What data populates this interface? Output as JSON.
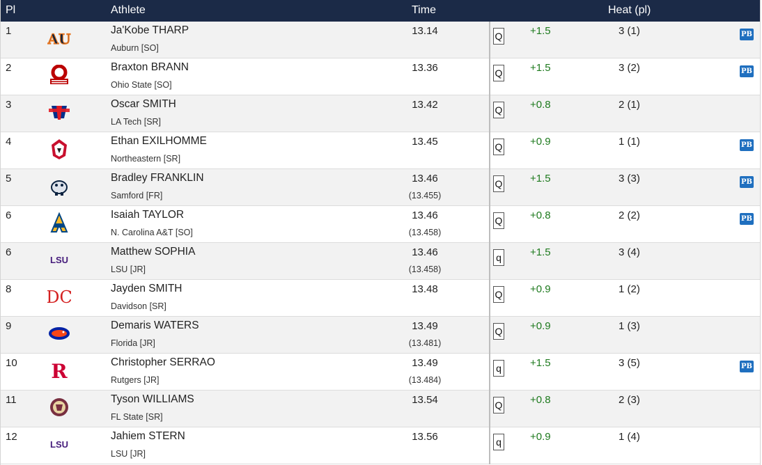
{
  "header": {
    "pl": "Pl",
    "athlete": "Athlete",
    "time": "Time",
    "heat": "Heat (pl)"
  },
  "rows": [
    {
      "pl": "1",
      "name": "Ja'Kobe THARP",
      "team": "Auburn [SO]",
      "time": "13.14",
      "precise": "",
      "qual": "Q",
      "wind": "+1.5",
      "heat": "3 (1)",
      "pb": "PB",
      "logo": "auburn-logo",
      "logo_text": "AU"
    },
    {
      "pl": "2",
      "name": "Braxton BRANN",
      "team": "Ohio State [SO]",
      "time": "13.36",
      "precise": "",
      "qual": "Q",
      "wind": "+1.5",
      "heat": "3 (2)",
      "pb": "PB",
      "logo": "ohio-state-logo",
      "logo_text": ""
    },
    {
      "pl": "3",
      "name": "Oscar SMITH",
      "team": "LA Tech [SR]",
      "time": "13.42",
      "precise": "",
      "qual": "Q",
      "wind": "+0.8",
      "heat": "2 (1)",
      "pb": "",
      "logo": "la-tech-logo",
      "logo_text": ""
    },
    {
      "pl": "4",
      "name": "Ethan EXILHOMME",
      "team": "Northeastern [SR]",
      "time": "13.45",
      "precise": "",
      "qual": "Q",
      "wind": "+0.9",
      "heat": "1 (1)",
      "pb": "PB",
      "logo": "northeastern-logo",
      "logo_text": ""
    },
    {
      "pl": "5",
      "name": "Bradley FRANKLIN",
      "team": "Samford [FR]",
      "time": "13.46",
      "precise": "(13.455)",
      "qual": "Q",
      "wind": "+1.5",
      "heat": "3 (3)",
      "pb": "PB",
      "logo": "samford-logo",
      "logo_text": ""
    },
    {
      "pl": "6",
      "name": "Isaiah TAYLOR",
      "team": "N. Carolina A&T [SO]",
      "time": "13.46",
      "precise": "(13.458)",
      "qual": "Q",
      "wind": "+0.8",
      "heat": "2 (2)",
      "pb": "PB",
      "logo": "nc-at-logo",
      "logo_text": ""
    },
    {
      "pl": "6",
      "name": "Matthew SOPHIA",
      "team": "LSU [JR]",
      "time": "13.46",
      "precise": "(13.458)",
      "qual": "q",
      "wind": "+1.5",
      "heat": "3 (4)",
      "pb": "",
      "logo": "lsu-logo",
      "logo_text": "LSU"
    },
    {
      "pl": "8",
      "name": "Jayden SMITH",
      "team": "Davidson [SR]",
      "time": "13.48",
      "precise": "",
      "qual": "Q",
      "wind": "+0.9",
      "heat": "1 (2)",
      "pb": "",
      "logo": "davidson-logo",
      "logo_text": "DC"
    },
    {
      "pl": "9",
      "name": "Demaris WATERS",
      "team": "Florida [JR]",
      "time": "13.49",
      "precise": "(13.481)",
      "qual": "Q",
      "wind": "+0.9",
      "heat": "1 (3)",
      "pb": "",
      "logo": "florida-logo",
      "logo_text": ""
    },
    {
      "pl": "10",
      "name": "Christopher SERRAO",
      "team": "Rutgers [JR]",
      "time": "13.49",
      "precise": "(13.484)",
      "qual": "q",
      "wind": "+1.5",
      "heat": "3 (5)",
      "pb": "PB",
      "logo": "rutgers-logo",
      "logo_text": "R"
    },
    {
      "pl": "11",
      "name": "Tyson WILLIAMS",
      "team": "FL State [SR]",
      "time": "13.54",
      "precise": "",
      "qual": "Q",
      "wind": "+0.8",
      "heat": "2 (3)",
      "pb": "",
      "logo": "fl-state-logo",
      "logo_text": ""
    },
    {
      "pl": "12",
      "name": "Jahiem STERN",
      "team": "LSU [JR]",
      "time": "13.56",
      "precise": "",
      "qual": "q",
      "wind": "+0.9",
      "heat": "1 (4)",
      "pb": "",
      "logo": "lsu-logo",
      "logo_text": "LSU"
    }
  ],
  "colors": {
    "header_bg": "#1b2a47",
    "wind": "#1e7a1e",
    "pb_badge": "#1f6fbf",
    "auburn_navy": "#0c2340",
    "auburn_orange": "#e87722",
    "ohio_red": "#bb0000",
    "latech_blue": "#002f8b",
    "latech_red": "#e31b23",
    "northeastern_red": "#c8102e",
    "samford_navy": "#0c2340",
    "ncat_blue": "#004684",
    "ncat_gold": "#fdb927",
    "lsu_purple": "#461d7c",
    "davidson_red": "#d42121",
    "florida_blue": "#0021a5",
    "florida_orange": "#fa4616",
    "rutgers_red": "#cc0033",
    "fsu_garnet": "#782f40"
  }
}
